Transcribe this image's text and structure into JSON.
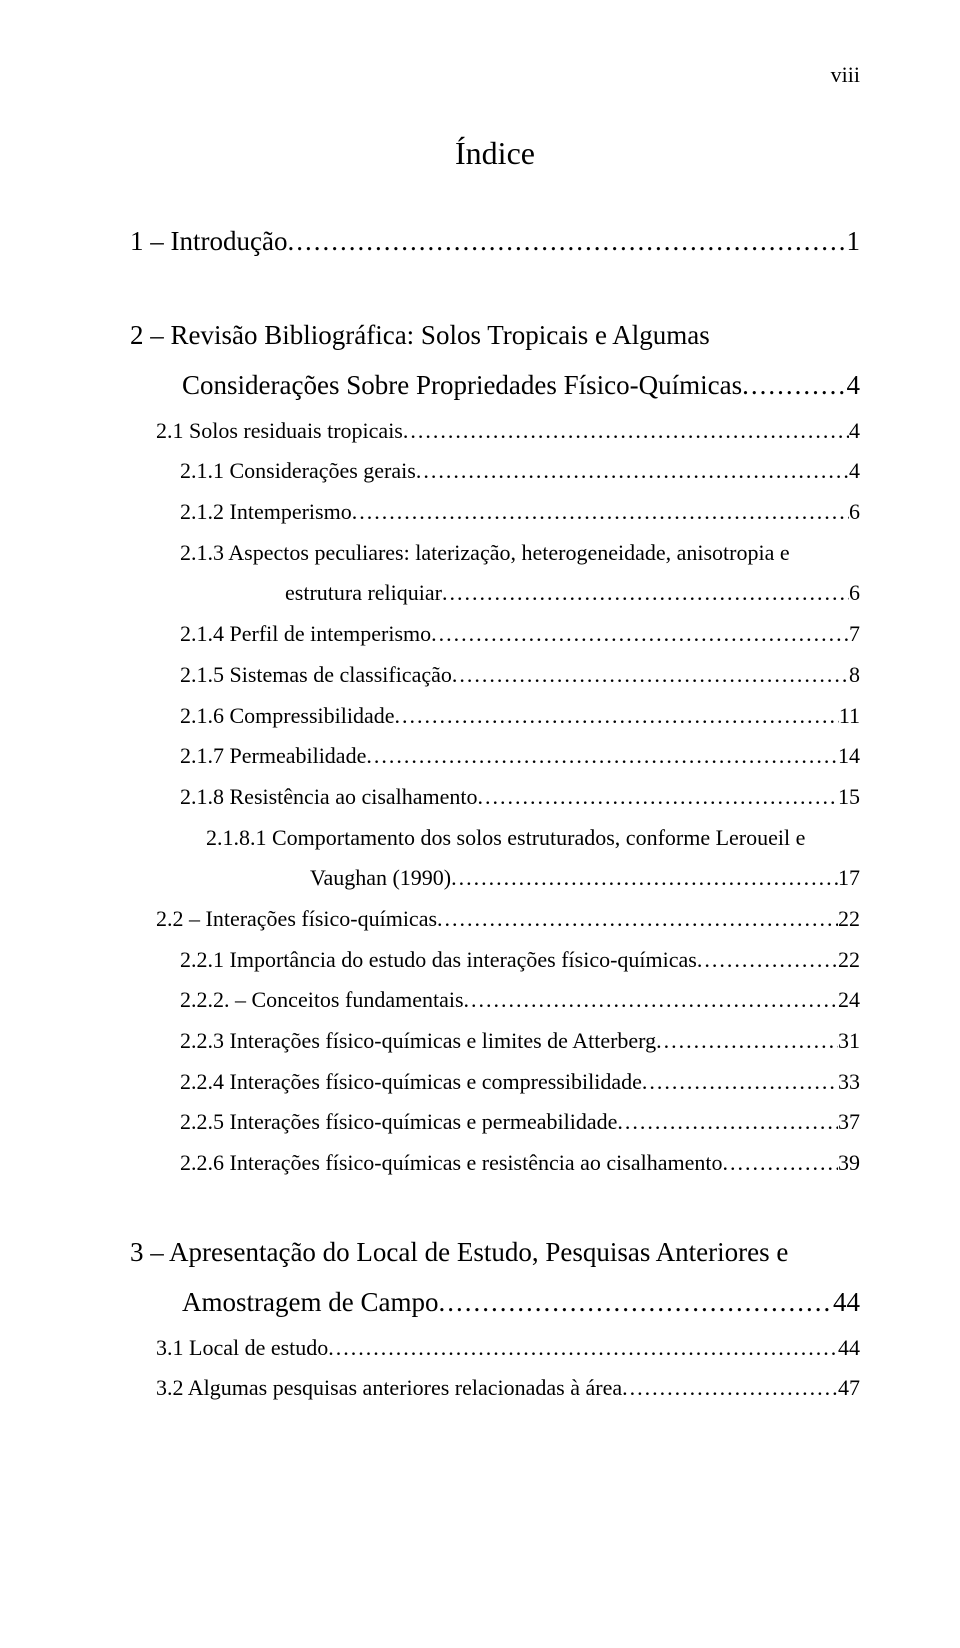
{
  "page_number": "viii",
  "title": "Índice",
  "entries": [
    {
      "cls": "toc-chapter",
      "label": "1 – Introdução",
      "page": "1"
    },
    {
      "cls": "gap"
    },
    {
      "cls": "toc-chapter",
      "nowrap_label": "2 – Revisão Bibliográfica: Solos Tropicais e Algumas"
    },
    {
      "cls": "toc-chapter-cont",
      "label": "Considerações Sobre Propriedades Físico-Químicas",
      "page": "4"
    },
    {
      "cls": "toc-l1",
      "label": "2.1 Solos residuais tropicais",
      "page": "4"
    },
    {
      "cls": "toc-l2",
      "label": "2.1.1 Considerações gerais",
      "page": "4"
    },
    {
      "cls": "toc-l2",
      "label": "2.1.2 Intemperismo",
      "page": "6"
    },
    {
      "cls": "toc-l2",
      "nowrap_label": "2.1.3 Aspectos peculiares: laterização, heterogeneidade, anisotropia e"
    },
    {
      "cls": "toc-l2-cont",
      "label": "estrutura reliquiar",
      "page": "6"
    },
    {
      "cls": "toc-l2",
      "label": "2.1.4 Perfil de intemperismo",
      "page": "7"
    },
    {
      "cls": "toc-l2",
      "label": "2.1.5 Sistemas de classificação",
      "page": "8"
    },
    {
      "cls": "toc-l2",
      "label": "2.1.6 Compressibilidade",
      "page": "11"
    },
    {
      "cls": "toc-l2",
      "label": "2.1.7 Permeabilidade",
      "page": "14"
    },
    {
      "cls": "toc-l2",
      "label": "2.1.8 Resistência ao cisalhamento",
      "page": "15"
    },
    {
      "cls": "toc-l3",
      "nowrap_label": "2.1.8.1 Comportamento dos solos estruturados, conforme Leroueil e"
    },
    {
      "cls": "toc-l3-cont",
      "label": "Vaughan (1990)",
      "page": "17"
    },
    {
      "cls": "toc-l1",
      "label": "2.2 – Interações físico-químicas",
      "page": "22"
    },
    {
      "cls": "toc-l2",
      "label": "2.2.1 Importância do estudo das interações físico-químicas",
      "page": "22"
    },
    {
      "cls": "toc-l2",
      "label": "2.2.2. – Conceitos fundamentais",
      "page": "24"
    },
    {
      "cls": "toc-l2",
      "label": "2.2.3 Interações físico-químicas e limites de Atterberg",
      "page": "31"
    },
    {
      "cls": "toc-l2",
      "label": "2.2.4 Interações físico-químicas e compressibilidade",
      "page": "33"
    },
    {
      "cls": "toc-l2",
      "label": "2.2.5 Interações físico-químicas e permeabilidade",
      "page": "37"
    },
    {
      "cls": "toc-l2",
      "label": "2.2.6 Interações físico-químicas e resistência ao cisalhamento",
      "page": "39"
    },
    {
      "cls": "gap"
    },
    {
      "cls": "toc-chapter",
      "nowrap_label": "3 – Apresentação do Local de Estudo, Pesquisas Anteriores e"
    },
    {
      "cls": "toc-chapter-cont",
      "label": "Amostragem de Campo",
      "page": "44"
    },
    {
      "cls": "toc-l1",
      "label": "3.1 Local de estudo",
      "page": "44"
    },
    {
      "cls": "toc-l1",
      "label": "3.2 Algumas pesquisas anteriores relacionadas à área",
      "page": "47"
    }
  ]
}
